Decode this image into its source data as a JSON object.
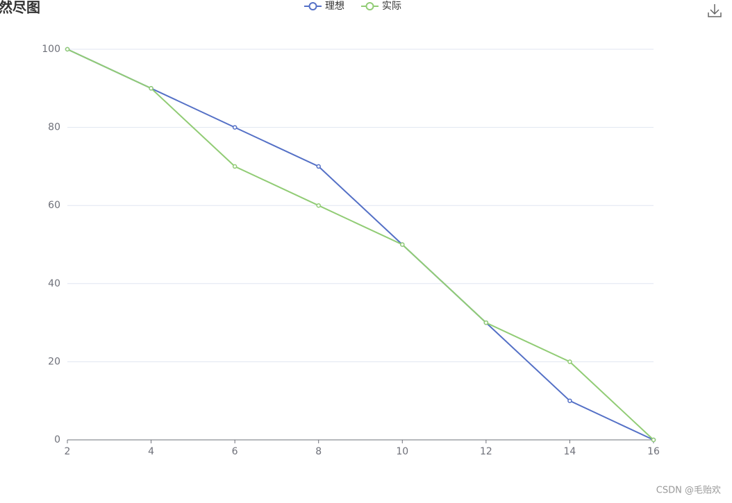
{
  "chart_data": {
    "type": "line",
    "title": "然尽图",
    "x": [
      2,
      4,
      6,
      8,
      10,
      12,
      14,
      16
    ],
    "series": [
      {
        "name": "理想",
        "color": "#5470c6",
        "values": [
          100,
          90,
          80,
          70,
          50,
          30,
          10,
          0
        ]
      },
      {
        "name": "实际",
        "color": "#91cc75",
        "values": [
          100,
          90,
          70,
          60,
          50,
          30,
          20,
          0
        ]
      }
    ],
    "xlim": [
      2,
      16
    ],
    "xticks": [
      2,
      4,
      6,
      8,
      10,
      12,
      14,
      16
    ],
    "ylim": [
      0,
      100
    ],
    "yticks": [
      0,
      20,
      40,
      60,
      80,
      100
    ],
    "grid": true,
    "legend": "top"
  },
  "watermark": "CSDN @毛贻欢"
}
